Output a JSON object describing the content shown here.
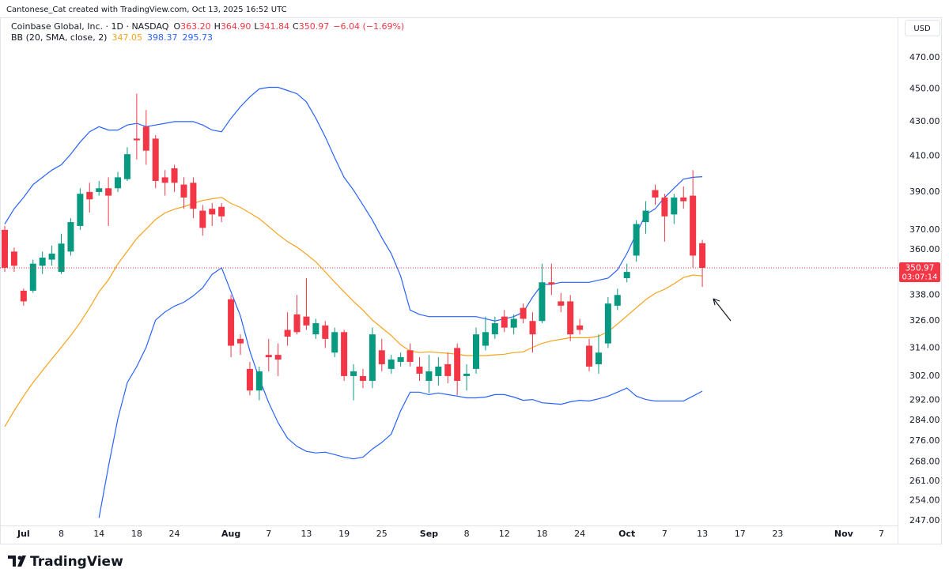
{
  "chart_data": {
    "type": "candlestick",
    "attribution": "Cantonese_Cat created with TradingView.com, Oct 13, 2025 16:52 UTC",
    "title": "Coinbase Global, Inc. · 1D · NASDAQ",
    "ohlc": [
      {
        "key": "O",
        "value": "363.20"
      },
      {
        "key": "H",
        "value": "364.90"
      },
      {
        "key": "L",
        "value": "341.84"
      },
      {
        "key": "C",
        "value": "350.97"
      }
    ],
    "change": "−6.04 (−1.69%)",
    "currency": "USD",
    "countdown": "03:07:14",
    "brand": "TradingView",
    "log_scale": true,
    "grid": false,
    "up_color": "#089981",
    "down_color": "#f23645",
    "categories": [
      null,
      null,
      "Jul",
      null,
      null,
      null,
      "8",
      null,
      null,
      null,
      "14",
      null,
      null,
      null,
      "18",
      null,
      null,
      null,
      "24",
      null,
      null,
      null,
      null,
      null,
      "Aug",
      null,
      null,
      null,
      "7",
      null,
      null,
      null,
      "13",
      null,
      null,
      null,
      "19",
      null,
      null,
      null,
      "25",
      null,
      null,
      null,
      null,
      "Sep",
      null,
      null,
      null,
      "8",
      null,
      null,
      null,
      "12",
      null,
      null,
      null,
      "18",
      null,
      null,
      null,
      "24",
      null,
      null,
      null,
      null,
      "Oct",
      null,
      null,
      null,
      "7",
      null,
      null,
      null,
      "13",
      null,
      null,
      null,
      "17",
      null,
      null,
      null,
      "23",
      null,
      null,
      null,
      null,
      null,
      null,
      "Nov",
      null,
      null,
      null,
      "7"
    ],
    "open": [
      370,
      359,
      340,
      340,
      352,
      355,
      349,
      359,
      372,
      390,
      390,
      392,
      392,
      397,
      420,
      427,
      420,
      398,
      403,
      394,
      395,
      380,
      381,
      382,
      336,
      318,
      305,
      296,
      311,
      311,
      322,
      329,
      328,
      320,
      324,
      312,
      321,
      302,
      302,
      300,
      313,
      305,
      308,
      313,
      306,
      300,
      302,
      307,
      314,
      302,
      305,
      315,
      320,
      328,
      323,
      332,
      326,
      326,
      344,
      335,
      335,
      324,
      315,
      307,
      316,
      333,
      346,
      357,
      374,
      391,
      387,
      378,
      387,
      388,
      363.2,
      null,
      null,
      null,
      null,
      null,
      null,
      null,
      null,
      null,
      null,
      null,
      null,
      null,
      null,
      null,
      null,
      null,
      null,
      null
    ],
    "high": [
      372,
      361,
      341,
      355,
      359,
      362,
      368,
      376,
      392,
      395,
      396,
      398,
      401,
      415,
      447,
      437,
      422,
      402,
      405,
      398,
      398,
      383,
      384,
      384,
      338,
      320,
      308,
      306,
      318,
      316,
      330,
      338,
      346,
      327,
      326,
      323,
      322,
      307,
      305,
      323,
      318,
      311,
      312,
      316,
      310,
      311,
      310,
      312,
      316,
      307,
      323,
      328,
      328,
      331,
      329,
      334,
      330,
      353,
      353,
      339,
      338,
      327,
      318,
      320,
      337,
      341,
      353,
      375,
      385,
      394,
      389,
      389,
      393,
      402,
      364.9,
      null,
      null,
      null,
      null,
      null,
      null,
      null,
      null,
      null,
      null,
      null,
      null,
      null,
      null,
      null,
      null,
      null,
      null,
      null
    ],
    "low": [
      349,
      349,
      333,
      339,
      348,
      352,
      348,
      357,
      370,
      379,
      388,
      372,
      390,
      396,
      408,
      405,
      392,
      388,
      390,
      381,
      376,
      367,
      372,
      374,
      310,
      311,
      294,
      292,
      304,
      302,
      315,
      320,
      322,
      318,
      314,
      310,
      300,
      292,
      297,
      297,
      304,
      303,
      306,
      306,
      300,
      295,
      298,
      299,
      294,
      296,
      303,
      313,
      318,
      321,
      320,
      325,
      312,
      325,
      338,
      330,
      317,
      320,
      304,
      303,
      314,
      331,
      344,
      354,
      368,
      383,
      364,
      373,
      381,
      351,
      341.84,
      null,
      null,
      null,
      null,
      null,
      null,
      null,
      null,
      null,
      null,
      null,
      null,
      null,
      null,
      null,
      null,
      null,
      null,
      null
    ],
    "close": [
      351,
      352,
      335,
      353,
      356,
      358,
      363,
      374,
      389,
      386,
      392,
      388,
      398,
      411,
      419,
      413,
      396,
      395,
      395,
      387,
      381,
      371,
      378,
      377,
      315,
      316,
      296,
      304,
      310,
      309,
      319,
      321,
      324,
      325,
      318,
      321,
      302,
      304,
      300,
      320,
      307,
      309,
      310,
      308,
      303,
      304,
      306,
      302,
      300,
      303,
      320,
      321,
      325,
      323,
      327,
      327,
      320,
      344,
      343,
      333,
      320,
      322,
      306,
      312,
      334,
      338,
      349,
      373,
      380,
      387,
      377,
      387,
      385,
      357,
      350.97,
      null,
      null,
      null,
      null,
      null,
      null,
      null,
      null,
      null,
      null,
      null,
      null,
      null,
      null,
      null,
      null,
      null,
      null,
      null
    ],
    "bollinger": {
      "label": "BB (20, SMA, close, 2)",
      "lines": [
        {
          "color": "#f7a21b",
          "values": [
            281.5,
            287.8,
            293.7,
            299.3,
            304.3,
            309.3,
            314.3,
            319.5,
            325.3,
            332,
            339.5,
            345.2,
            352.8,
            359.2,
            365.6,
            370.4,
            375.4,
            378.8,
            380.8,
            382.1,
            383.8,
            385.4,
            386.3,
            387.1,
            383.8,
            381.7,
            378.8,
            375.8,
            371.7,
            367.6,
            364,
            361.2,
            357.7,
            353.9,
            349,
            344.1,
            339.5,
            335,
            330.9,
            326.4,
            322.9,
            319.5,
            315.4,
            312.7,
            312,
            312.3,
            312,
            311.7,
            311.3,
            310.7,
            310.7,
            310.7,
            311,
            311.3,
            312,
            312.3,
            314.3,
            316,
            317.1,
            317.8,
            318.5,
            318.5,
            318.5,
            319.2,
            321.2,
            324.6,
            328.3,
            332,
            335.8,
            338.8,
            340.7,
            343.3,
            346.3,
            347.5,
            347.05,
            null,
            null,
            null,
            null,
            null,
            null,
            null,
            null,
            null,
            null,
            null,
            null,
            null,
            null,
            null,
            null,
            null,
            null,
            null
          ]
        },
        {
          "color": "#2962ff",
          "values": [
            373,
            381,
            387,
            394,
            398,
            402,
            405,
            411,
            418,
            424,
            427,
            425,
            425,
            428,
            429,
            427,
            428,
            429,
            430,
            430,
            430,
            428,
            425,
            424,
            432,
            439,
            445,
            450,
            451,
            451,
            449,
            447,
            442,
            432,
            421,
            409,
            398,
            391,
            383,
            375,
            366,
            358,
            347,
            331,
            329,
            328,
            328,
            328,
            328,
            328,
            328,
            327,
            326,
            327,
            328,
            330,
            337,
            343,
            343,
            344,
            344,
            344,
            344,
            345,
            346,
            350,
            358,
            368,
            378,
            381,
            387,
            392,
            397,
            398,
            398.37,
            null,
            null,
            null,
            null,
            null,
            null,
            null,
            null,
            null,
            null,
            null,
            null,
            null,
            null,
            null,
            null,
            null,
            null,
            null
          ]
        },
        {
          "color": "#2962ff",
          "values": [
            null,
            null,
            null,
            null,
            null,
            null,
            null,
            null,
            null,
            null,
            248,
            266.3,
            284.6,
            299.3,
            306,
            314.3,
            326.4,
            330.1,
            332.8,
            334.6,
            337.6,
            341.4,
            347.8,
            351,
            339.5,
            328.3,
            312.7,
            301,
            291,
            283,
            277,
            273.9,
            272,
            271.4,
            271.7,
            270.8,
            269.8,
            269.2,
            269.8,
            272.9,
            275.4,
            278.6,
            287.8,
            295.3,
            295.3,
            294.3,
            295,
            294.3,
            293.7,
            293,
            293,
            293.3,
            294.3,
            294.3,
            293.3,
            292,
            292.3,
            291,
            290.7,
            290.4,
            291.4,
            292,
            291.7,
            292.6,
            293.7,
            295.3,
            297,
            293.7,
            292.3,
            291.7,
            291.7,
            291.7,
            291.7,
            293.7,
            295.73,
            null,
            null,
            null,
            null,
            null,
            null,
            null,
            null,
            null,
            null,
            null,
            null,
            null,
            null,
            null,
            null,
            null,
            null,
            null
          ]
        }
      ]
    },
    "ylim": [
      245.4,
      497.0
    ],
    "yticks": [
      {
        "value": 247,
        "label": "247.00"
      },
      {
        "value": 254,
        "label": "254.00"
      },
      {
        "value": 261,
        "label": "261.00"
      },
      {
        "value": 268,
        "label": "268.00"
      },
      {
        "value": 276,
        "label": "276.00"
      },
      {
        "value": 284,
        "label": "284.00"
      },
      {
        "value": 292,
        "label": "292.00"
      },
      {
        "value": 302,
        "label": "302.00"
      },
      {
        "value": 314,
        "label": "314.00"
      },
      {
        "value": 326,
        "label": "326.00"
      },
      {
        "value": 338,
        "label": "338.00"
      },
      {
        "value": 360,
        "label": "360.00"
      },
      {
        "value": 370,
        "label": "370.00"
      },
      {
        "value": 390,
        "label": "390.00"
      },
      {
        "value": 410,
        "label": "410.00"
      },
      {
        "value": 430,
        "label": "430.00"
      },
      {
        "value": 450,
        "label": "450.00"
      },
      {
        "value": 470,
        "label": "470.00"
      }
    ]
  }
}
